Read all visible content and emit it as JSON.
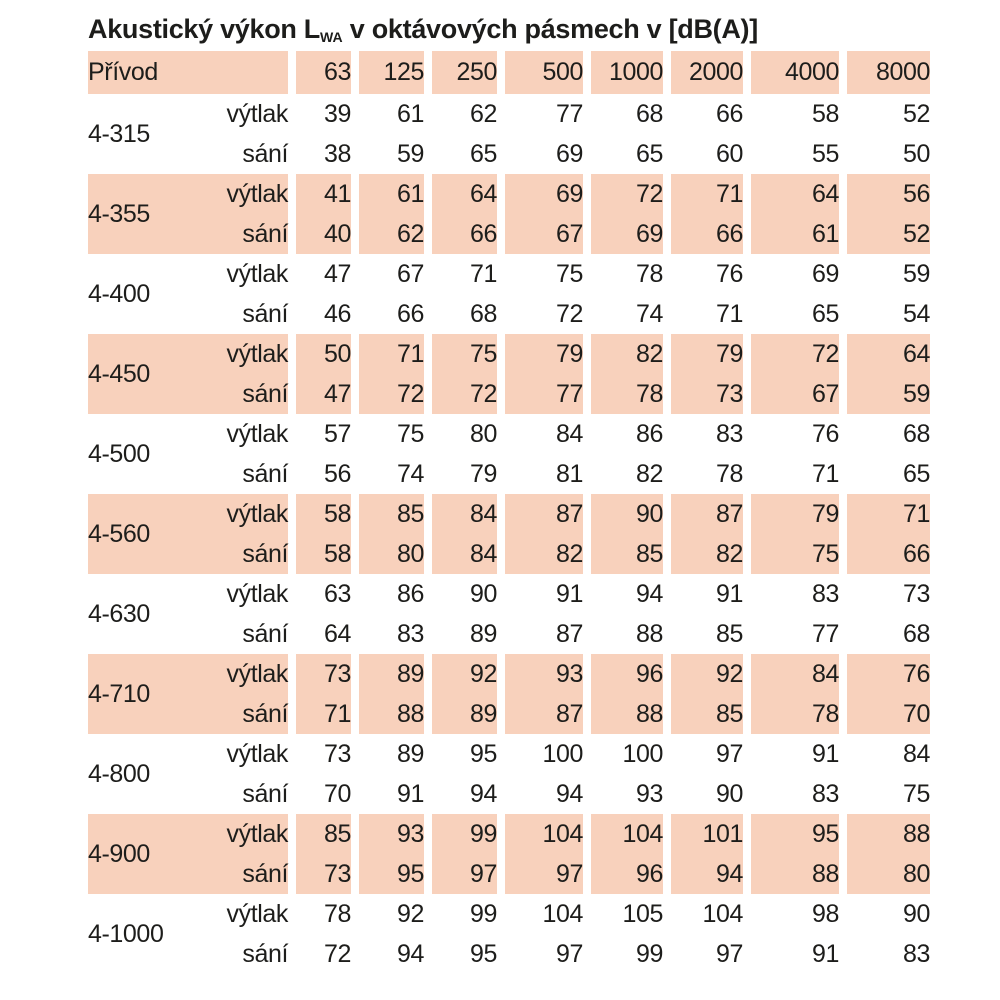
{
  "title": {
    "prefix": "Akustický výkon L",
    "subscript": "WA",
    "suffix": " v oktávových pásmech v [dB(A)]"
  },
  "colors": {
    "band": "#f8d1bc",
    "text": "#1d1d1b",
    "background": "#ffffff"
  },
  "table": {
    "corner_label": "Přívod",
    "frequency_headers": [
      "63",
      "125",
      "250",
      "500",
      "1000",
      "2000",
      "4000",
      "8000"
    ],
    "flow_labels": {
      "discharge": "výtlak",
      "suction": "sání"
    },
    "rows": [
      {
        "model": "4-315",
        "shaded": false,
        "vytlak": [
          "39",
          "61",
          "62",
          "77",
          "68",
          "66",
          "58",
          "52"
        ],
        "sani": [
          "38",
          "59",
          "65",
          "69",
          "65",
          "60",
          "55",
          "50"
        ]
      },
      {
        "model": "4-355",
        "shaded": true,
        "vytlak": [
          "41",
          "61",
          "64",
          "69",
          "72",
          "71",
          "64",
          "56"
        ],
        "sani": [
          "40",
          "62",
          "66",
          "67",
          "69",
          "66",
          "61",
          "52"
        ]
      },
      {
        "model": "4-400",
        "shaded": false,
        "vytlak": [
          "47",
          "67",
          "71",
          "75",
          "78",
          "76",
          "69",
          "59"
        ],
        "sani": [
          "46",
          "66",
          "68",
          "72",
          "74",
          "71",
          "65",
          "54"
        ]
      },
      {
        "model": "4-450",
        "shaded": true,
        "vytlak": [
          "50",
          "71",
          "75",
          "79",
          "82",
          "79",
          "72",
          "64"
        ],
        "sani": [
          "47",
          "72",
          "72",
          "77",
          "78",
          "73",
          "67",
          "59"
        ]
      },
      {
        "model": "4-500",
        "shaded": false,
        "vytlak": [
          "57",
          "75",
          "80",
          "84",
          "86",
          "83",
          "76",
          "68"
        ],
        "sani": [
          "56",
          "74",
          "79",
          "81",
          "82",
          "78",
          "71",
          "65"
        ]
      },
      {
        "model": "4-560",
        "shaded": true,
        "vytlak": [
          "58",
          "85",
          "84",
          "87",
          "90",
          "87",
          "79",
          "71"
        ],
        "sani": [
          "58",
          "80",
          "84",
          "82",
          "85",
          "82",
          "75",
          "66"
        ]
      },
      {
        "model": "4-630",
        "shaded": false,
        "vytlak": [
          "63",
          "86",
          "90",
          "91",
          "94",
          "91",
          "83",
          "73"
        ],
        "sani": [
          "64",
          "83",
          "89",
          "87",
          "88",
          "85",
          "77",
          "68"
        ]
      },
      {
        "model": "4-710",
        "shaded": true,
        "vytlak": [
          "73",
          "89",
          "92",
          "93",
          "96",
          "92",
          "84",
          "76"
        ],
        "sani": [
          "71",
          "88",
          "89",
          "87",
          "88",
          "85",
          "78",
          "70"
        ]
      },
      {
        "model": "4-800",
        "shaded": false,
        "vytlak": [
          "73",
          "89",
          "95",
          "100",
          "100",
          "97",
          "91",
          "84"
        ],
        "sani": [
          "70",
          "91",
          "94",
          "94",
          "93",
          "90",
          "83",
          "75"
        ]
      },
      {
        "model": "4-900",
        "shaded": true,
        "vytlak": [
          "85",
          "93",
          "99",
          "104",
          "104",
          "101",
          "95",
          "88"
        ],
        "sani": [
          "73",
          "95",
          "97",
          "97",
          "96",
          "94",
          "88",
          "80"
        ]
      },
      {
        "model": "4-1000",
        "shaded": false,
        "vytlak": [
          "78",
          "92",
          "99",
          "104",
          "105",
          "104",
          "98",
          "90"
        ],
        "sani": [
          "72",
          "94",
          "95",
          "97",
          "99",
          "97",
          "91",
          "83"
        ]
      }
    ]
  }
}
